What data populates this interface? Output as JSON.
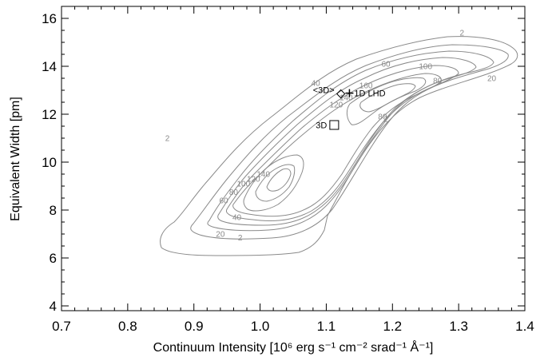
{
  "chart_data": {
    "type": "contour",
    "xlabel": "Continuum Intensity [10⁶ erg s⁻¹ cm⁻² srad⁻¹ Å⁻¹]",
    "ylabel": "Equivalent Width [pm]",
    "xlim": [
      0.7,
      1.4
    ],
    "ylim": [
      3.8,
      16.5
    ],
    "x_ticks": [
      0.7,
      0.8,
      0.9,
      1.0,
      1.1,
      1.2,
      1.3,
      1.4
    ],
    "y_ticks": [
      4,
      6,
      8,
      10,
      12,
      14,
      16
    ],
    "x_tick_labels": [
      "0.7",
      "0.8",
      "0.9",
      "1.0",
      "1.1",
      "1.2",
      "1.3",
      "1.4"
    ],
    "y_tick_labels": [
      "4",
      "6",
      "8",
      "10",
      "12",
      "14",
      "16"
    ],
    "grid": false,
    "contour_levels": [
      2,
      20,
      40,
      60,
      80,
      100,
      120,
      140,
      160
    ],
    "contour_labels": [
      {
        "text": "2",
        "x": 1.305,
        "y": 15.4
      },
      {
        "text": "2",
        "x": 0.86,
        "y": 11.0
      },
      {
        "text": "2",
        "x": 0.97,
        "y": 6.85
      },
      {
        "text": "2",
        "x": 1.19,
        "y": 11.8
      },
      {
        "text": "20",
        "x": 0.94,
        "y": 7.0
      },
      {
        "text": "20",
        "x": 1.35,
        "y": 13.5
      },
      {
        "text": "40",
        "x": 0.965,
        "y": 7.7
      },
      {
        "text": "40",
        "x": 1.084,
        "y": 13.3
      },
      {
        "text": "60",
        "x": 0.945,
        "y": 8.4
      },
      {
        "text": "60",
        "x": 1.19,
        "y": 14.1
      },
      {
        "text": "80",
        "x": 0.96,
        "y": 8.75
      },
      {
        "text": "80",
        "x": 1.268,
        "y": 13.4
      },
      {
        "text": "80",
        "x": 1.185,
        "y": 11.9
      },
      {
        "text": "100",
        "x": 0.975,
        "y": 9.1
      },
      {
        "text": "100",
        "x": 1.25,
        "y": 14.0
      },
      {
        "text": "120",
        "x": 0.99,
        "y": 9.3
      },
      {
        "text": "120",
        "x": 1.115,
        "y": 12.4
      },
      {
        "text": "140",
        "x": 1.005,
        "y": 9.5
      },
      {
        "text": "140",
        "x": 1.13,
        "y": 12.7
      },
      {
        "text": "160",
        "x": 1.16,
        "y": 13.2
      }
    ],
    "points": [
      {
        "name": "<3D>",
        "x": 1.122,
        "y": 12.85,
        "marker": "diamond"
      },
      {
        "name": "1D LHD",
        "x": 1.135,
        "y": 12.88,
        "marker": "plus"
      },
      {
        "name": "3D",
        "x": 1.112,
        "y": 11.55,
        "marker": "square"
      }
    ]
  }
}
